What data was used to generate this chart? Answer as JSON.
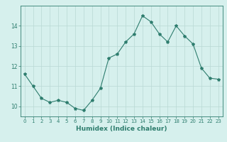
{
  "x": [
    0,
    1,
    2,
    3,
    4,
    5,
    6,
    7,
    8,
    9,
    10,
    11,
    12,
    13,
    14,
    15,
    16,
    17,
    18,
    19,
    20,
    21,
    22,
    23
  ],
  "y": [
    11.6,
    11.0,
    10.4,
    10.2,
    10.3,
    10.2,
    9.9,
    9.8,
    10.3,
    10.9,
    12.4,
    12.6,
    13.2,
    13.6,
    14.5,
    14.2,
    13.6,
    13.2,
    14.0,
    13.5,
    13.1,
    11.9,
    11.4,
    11.35
  ],
  "line_color": "#2e7d6e",
  "marker": "*",
  "marker_size": 3,
  "bg_color": "#d6f0ed",
  "grid_color": "#b8d8d4",
  "axis_color": "#2e7d6e",
  "tick_color": "#2e7d6e",
  "xlabel": "Humidex (Indice chaleur)",
  "xlabel_fontsize": 6.5,
  "xlabel_color": "#2e7d6e",
  "ylim": [
    9.5,
    15.0
  ],
  "xlim": [
    -0.5,
    23.5
  ],
  "yticks": [
    10,
    11,
    12,
    13,
    14
  ],
  "xticks": [
    0,
    1,
    2,
    3,
    4,
    5,
    6,
    7,
    8,
    9,
    10,
    11,
    12,
    13,
    14,
    15,
    16,
    17,
    18,
    19,
    20,
    21,
    22,
    23
  ]
}
